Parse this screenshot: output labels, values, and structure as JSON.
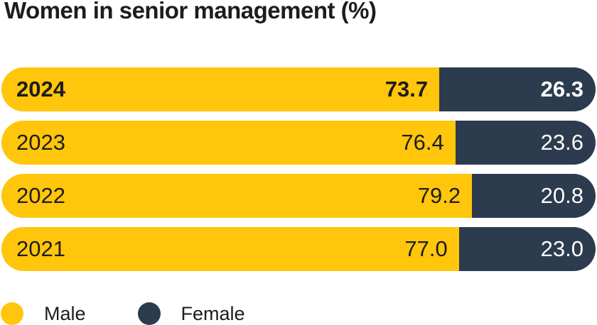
{
  "title": "Women in senior management (%)",
  "colors": {
    "male": "#ffc60b",
    "female": "#2c3c4e",
    "text_dark": "#1d1d1b",
    "text_light": "#ffffff",
    "background": "#ffffff"
  },
  "legend": {
    "items": [
      {
        "label": "Male",
        "color_key": "male"
      },
      {
        "label": "Female",
        "color_key": "female"
      }
    ],
    "position": "bottom"
  },
  "chart_data": {
    "type": "bar",
    "orientation": "horizontal",
    "stacked": true,
    "title": "Women in senior management (%)",
    "categories": [
      "2024",
      "2023",
      "2022",
      "2021"
    ],
    "series": [
      {
        "name": "Male",
        "values": [
          73.7,
          76.4,
          79.2,
          77.0
        ]
      },
      {
        "name": "Female",
        "values": [
          26.3,
          23.6,
          20.8,
          23.0
        ]
      }
    ],
    "value_label_decimals": 1,
    "emphasized_category": "2024",
    "xlim": [
      0,
      100
    ],
    "grid": false,
    "legend_position": "bottom"
  }
}
